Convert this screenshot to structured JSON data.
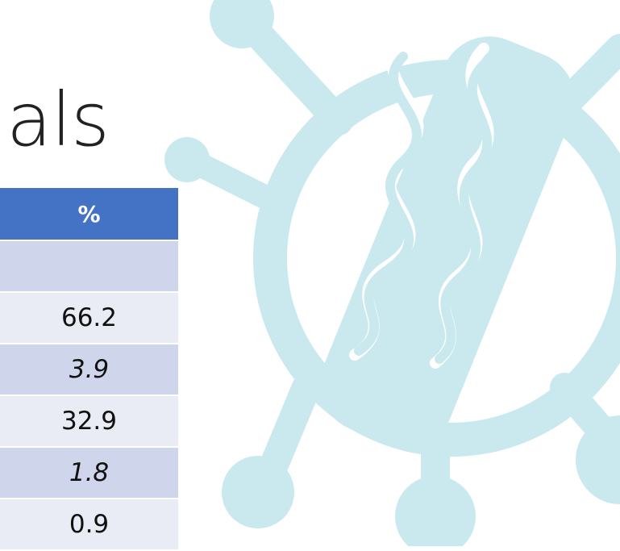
{
  "title": "als",
  "table": {
    "header": "%",
    "rows": [
      "66.2",
      "3.9",
      "32.9",
      "1.8",
      "0.9"
    ]
  }
}
